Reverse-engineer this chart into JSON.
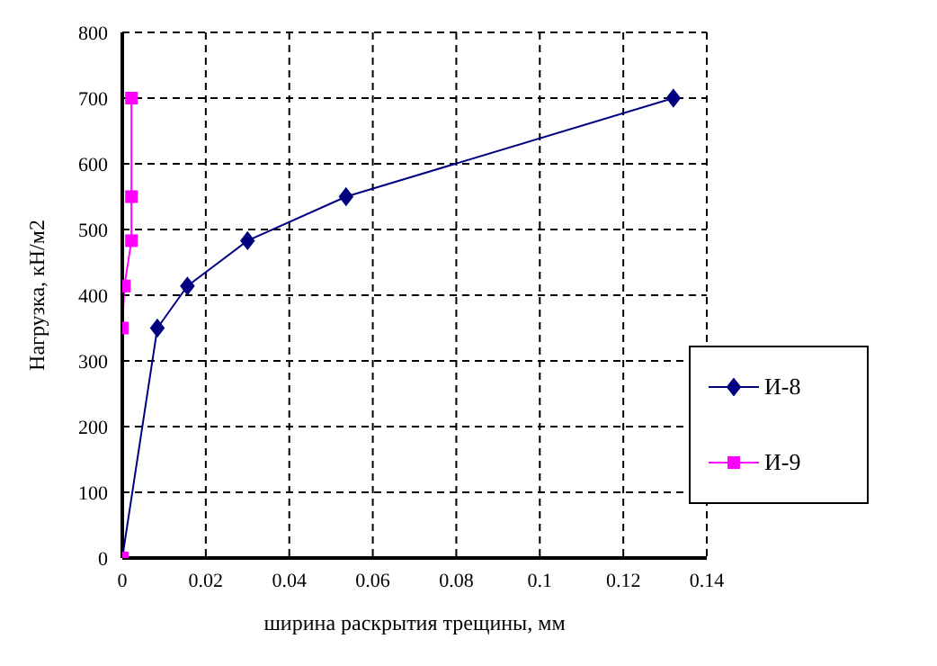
{
  "chart_data": {
    "type": "line",
    "xlabel": "ширина раскрытия трещины, мм",
    "ylabel": "Нагрузка, кН/м2",
    "xlim": [
      0,
      0.14
    ],
    "xticks": [
      0,
      0.02,
      0.04,
      0.06,
      0.08,
      0.1,
      0.12,
      0.14
    ],
    "ylim": [
      0,
      800
    ],
    "yticks": [
      0,
      100,
      200,
      300,
      400,
      500,
      600,
      700,
      800
    ],
    "grid": true,
    "legend": "bottom right",
    "line_style": "solid",
    "series": [
      {
        "name": "И-8",
        "color": "#000080",
        "marker": "diamond",
        "x": [
          0,
          0.0084,
          0.0156,
          0.03,
          0.0536,
          0.132
        ],
        "values": [
          0,
          350,
          414,
          483,
          550,
          700
        ]
      },
      {
        "name": "И-9",
        "color": "#ff00ff",
        "marker": "square",
        "x": [
          0,
          0,
          0.0005,
          0.0022,
          0.0022,
          0.0022
        ],
        "values": [
          0,
          350,
          414,
          483,
          550,
          700
        ]
      }
    ]
  }
}
